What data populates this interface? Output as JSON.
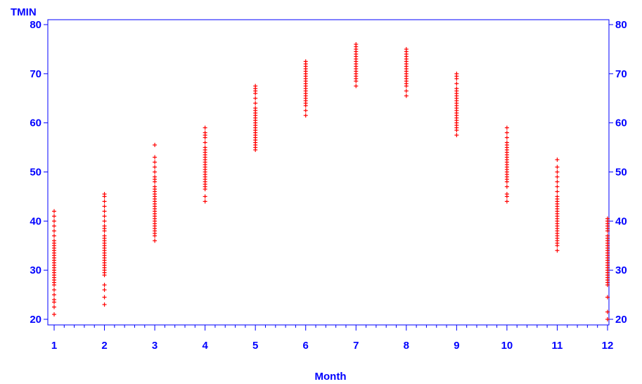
{
  "chart_data": {
    "type": "scatter",
    "title": "",
    "ylabel": "TMIN",
    "xlabel": "Month",
    "xlim": [
      1,
      12
    ],
    "ylim": [
      20,
      80
    ],
    "xticks": [
      "1",
      "2",
      "3",
      "4",
      "5",
      "6",
      "7",
      "8",
      "9",
      "10",
      "11",
      "12"
    ],
    "yticks": [
      "20",
      "30",
      "40",
      "50",
      "60",
      "70",
      "80"
    ],
    "marker": "+",
    "colors": {
      "marker": "#ff0000",
      "axis": "#0000ff"
    },
    "series": [
      {
        "x": 1,
        "y": [
          21,
          22.5,
          23.5,
          24,
          25,
          26,
          27,
          27.5,
          28,
          28.5,
          29,
          29.5,
          30,
          30.5,
          31,
          31.5,
          32,
          32.5,
          33,
          33.5,
          34,
          34.5,
          35,
          35.5,
          36,
          37,
          38,
          39,
          40,
          41,
          42
        ]
      },
      {
        "x": 2,
        "y": [
          23,
          24.5,
          26,
          27,
          29,
          29.5,
          30,
          30.5,
          31,
          31.5,
          32,
          32.5,
          33,
          33.5,
          34,
          34.5,
          35,
          35.5,
          36,
          36.5,
          37,
          38,
          38.5,
          39,
          40,
          41,
          42,
          43,
          44,
          45,
          45.5
        ]
      },
      {
        "x": 3,
        "y": [
          36,
          37,
          37.5,
          38,
          38.5,
          39,
          39.5,
          40,
          40.5,
          41,
          41.5,
          42,
          42.5,
          43,
          43.5,
          44,
          44.5,
          45,
          45.5,
          46,
          46.5,
          47,
          48,
          48.5,
          49,
          50,
          51,
          52,
          53,
          55.5
        ]
      },
      {
        "x": 4,
        "y": [
          44,
          45,
          46.5,
          47,
          47.5,
          48,
          48.5,
          49,
          49.5,
          50,
          50.5,
          51,
          51.5,
          52,
          52.5,
          53,
          53.5,
          54,
          54.5,
          55,
          56,
          57,
          57.5,
          58,
          59
        ]
      },
      {
        "x": 5,
        "y": [
          54.5,
          55,
          55.5,
          56,
          56.5,
          57,
          57.5,
          58,
          58.5,
          59,
          59.5,
          60,
          60.5,
          61,
          61.5,
          62,
          62.5,
          63,
          64,
          65,
          66,
          66.5,
          67,
          67.5
        ]
      },
      {
        "x": 6,
        "y": [
          61.5,
          62.5,
          63.5,
          64,
          64.5,
          65,
          65.5,
          66,
          66.5,
          67,
          67.5,
          68,
          68.5,
          69,
          69.5,
          70,
          70.5,
          71,
          71.5,
          72,
          72.5
        ]
      },
      {
        "x": 7,
        "y": [
          67.5,
          68.5,
          69,
          69.5,
          70,
          70.5,
          71,
          71.5,
          72,
          72.5,
          73,
          73.5,
          74,
          74.5,
          75,
          75.5,
          76
        ]
      },
      {
        "x": 8,
        "y": [
          65.5,
          66.5,
          67.5,
          68,
          68.5,
          69,
          69.5,
          70,
          70.5,
          71,
          71.5,
          72,
          72.5,
          73,
          73.5,
          74,
          74.5,
          75
        ]
      },
      {
        "x": 9,
        "y": [
          57.5,
          58.5,
          59,
          59.5,
          60,
          60.5,
          61,
          61.5,
          62,
          62.5,
          63,
          63.5,
          64,
          64.5,
          65,
          65.5,
          66,
          66.5,
          67,
          68,
          69,
          69.5,
          70
        ]
      },
      {
        "x": 10,
        "y": [
          44,
          45,
          45.5,
          47,
          48,
          48.5,
          49,
          49.5,
          50,
          50.5,
          51,
          51.5,
          52,
          52.5,
          53,
          53.5,
          54,
          54.5,
          55,
          55.5,
          56,
          57,
          58,
          59
        ]
      },
      {
        "x": 11,
        "y": [
          34,
          35,
          35.5,
          36,
          36.5,
          37,
          37.5,
          38,
          38.5,
          39,
          39.5,
          40,
          40.5,
          41,
          41.5,
          42,
          42.5,
          43,
          43.5,
          44,
          44.5,
          45,
          46,
          47,
          48,
          49,
          50,
          51,
          52.5
        ]
      },
      {
        "x": 12,
        "y": [
          20,
          21.5,
          24.5,
          27,
          27.5,
          28,
          28.5,
          29,
          29.5,
          30,
          30.5,
          31,
          31.5,
          32,
          32.5,
          33,
          33.5,
          34,
          34.5,
          35,
          35.5,
          36,
          36.5,
          37,
          38,
          38.5,
          39,
          39.5,
          40,
          40.5
        ]
      }
    ]
  }
}
